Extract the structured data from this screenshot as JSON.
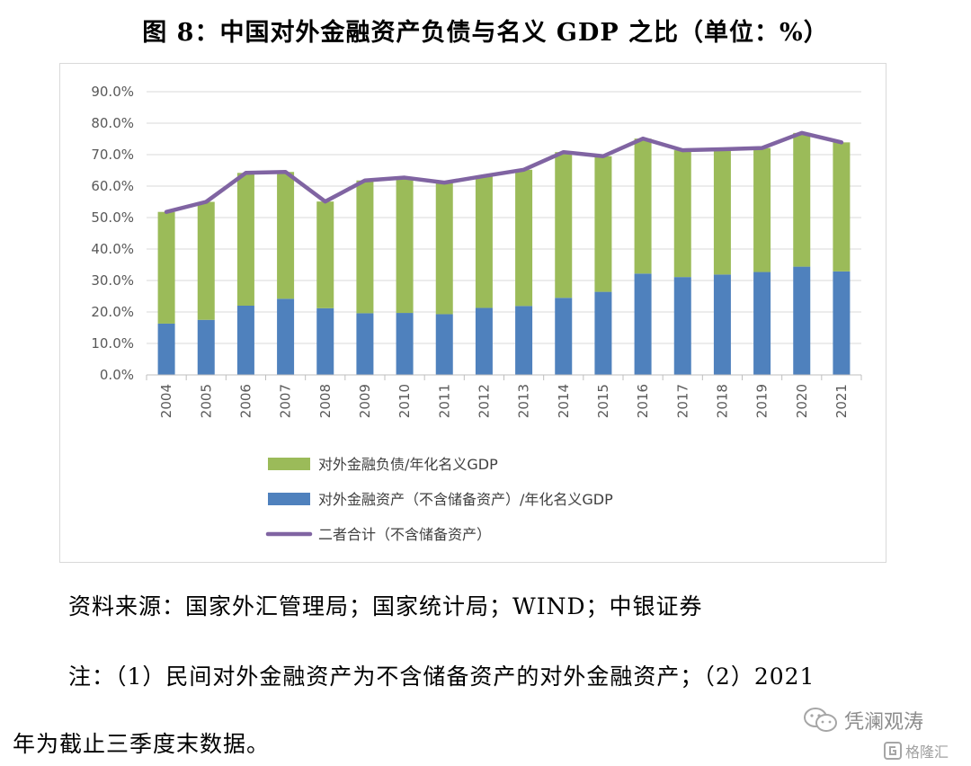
{
  "title": "图 8：中国对外金融资产负债与名义 GDP 之比（单位：%）",
  "source": "资料来源：国家外汇管理局；国家统计局；WIND；中银证券",
  "note_line1": "注：（1）民间对外金融资产为不含储备资产的对外金融资产；（2）2021",
  "note_line2": "年为截止三季度末数据。",
  "watermark": {
    "name": "凭澜观涛",
    "brand": "格隆汇"
  },
  "colors": {
    "green": "#9bbb59",
    "blue": "#4f81bd",
    "purple": "#8064a2",
    "grid": "#d9d9d9"
  },
  "chart_data": {
    "type": "bar",
    "stacked": true,
    "title": "",
    "categories": [
      "2004",
      "2005",
      "2006",
      "2007",
      "2008",
      "2009",
      "2010",
      "2011",
      "2012",
      "2013",
      "2014",
      "2015",
      "2016",
      "2017",
      "2018",
      "2019",
      "2020",
      "2021"
    ],
    "y_ticks": [
      "0.0%",
      "10.0%",
      "20.0%",
      "30.0%",
      "40.0%",
      "50.0%",
      "60.0%",
      "70.0%",
      "80.0%",
      "90.0%"
    ],
    "ylim": [
      0,
      90
    ],
    "grid": true,
    "legend_position": "bottom",
    "series": [
      {
        "name": "对外金融资产（不含储备资产）/年化名义GDP",
        "kind": "bar",
        "color": "#4f81bd",
        "values": [
          16.3,
          17.5,
          22.0,
          24.2,
          21.2,
          19.6,
          19.7,
          19.3,
          21.3,
          21.9,
          24.5,
          26.4,
          32.2,
          31.1,
          31.9,
          32.7,
          34.4,
          32.9
        ]
      },
      {
        "name": "对外金融负债/年化名义GDP",
        "kind": "bar",
        "color": "#9bbb59",
        "values": [
          35.5,
          37.5,
          42.2,
          40.3,
          33.9,
          42.2,
          43.0,
          41.8,
          41.9,
          43.3,
          46.3,
          43.1,
          42.9,
          40.3,
          39.8,
          39.4,
          42.5,
          41.0
        ]
      },
      {
        "name": "二者合计（不含储备资产）",
        "kind": "line",
        "color": "#8064a2",
        "values": [
          51.8,
          55.0,
          64.2,
          64.5,
          55.1,
          61.8,
          62.7,
          61.1,
          63.2,
          65.2,
          70.8,
          69.5,
          75.1,
          71.4,
          71.7,
          72.1,
          76.9,
          73.9
        ]
      }
    ]
  }
}
